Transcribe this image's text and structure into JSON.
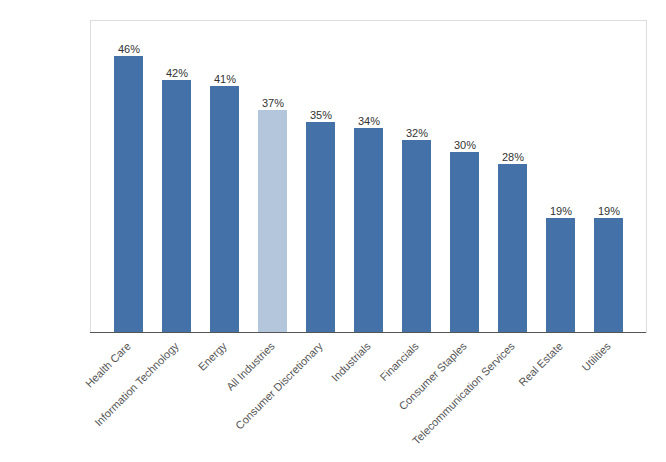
{
  "chart_data": {
    "type": "bar",
    "categories": [
      "Health Care",
      "Information Technology",
      "Energy",
      "All Industries",
      "Consumer Discretionary",
      "Industrials",
      "Financials",
      "Consumer Staples",
      "Telecommunication Services",
      "Real Estate",
      "Utilities"
    ],
    "values": [
      46,
      42,
      41,
      37,
      35,
      34,
      32,
      30,
      28,
      19,
      19
    ],
    "value_labels": [
      "46%",
      "42%",
      "41%",
      "37%",
      "35%",
      "34%",
      "32%",
      "30%",
      "28%",
      "19%",
      "19%"
    ],
    "colors": [
      "#4472a8",
      "#4472a8",
      "#4472a8",
      "#b3c6dc",
      "#4472a8",
      "#4472a8",
      "#4472a8",
      "#4472a8",
      "#4472a8",
      "#4472a8",
      "#4472a8"
    ],
    "ylim": [
      0,
      52
    ],
    "yticks": [],
    "grid": false,
    "data_labels": true,
    "tick_labels": "x"
  }
}
